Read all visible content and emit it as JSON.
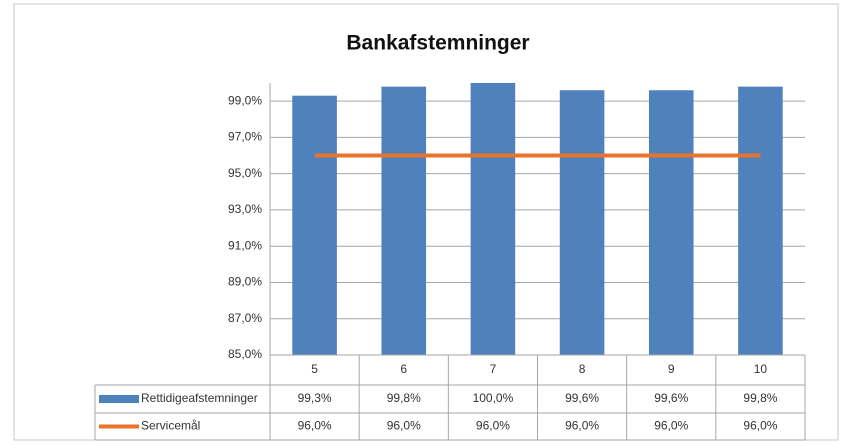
{
  "chart_data": {
    "type": "bar",
    "title": "Bankafstemninger",
    "categories": [
      "5",
      "6",
      "7",
      "8",
      "9",
      "10"
    ],
    "series": [
      {
        "name": "Rettidigeafstemninger",
        "type": "bar",
        "color": "#4f81bd",
        "values": [
          99.3,
          99.8,
          100.0,
          99.6,
          99.6,
          99.8
        ],
        "value_labels": [
          "99,3%",
          "99,8%",
          "100,0%",
          "99,6%",
          "99,6%",
          "99,8%"
        ]
      },
      {
        "name": "Servicemål",
        "type": "line",
        "color": "#e8732a",
        "values": [
          96.0,
          96.0,
          96.0,
          96.0,
          96.0,
          96.0
        ],
        "value_labels": [
          "96,0%",
          "96,0%",
          "96,0%",
          "96,0%",
          "96,0%",
          "96,0%"
        ]
      }
    ],
    "ylim": [
      85,
      100
    ],
    "yticks": [
      {
        "value": 85,
        "label": "85,0%"
      },
      {
        "value": 87,
        "label": "87,0%"
      },
      {
        "value": 89,
        "label": "89,0%"
      },
      {
        "value": 91,
        "label": "91,0%"
      },
      {
        "value": 93,
        "label": "93,0%"
      },
      {
        "value": 95,
        "label": "95,0%"
      },
      {
        "value": 97,
        "label": "97,0%"
      },
      {
        "value": 99,
        "label": "99,0%"
      }
    ],
    "grid": true,
    "data_table": true
  }
}
